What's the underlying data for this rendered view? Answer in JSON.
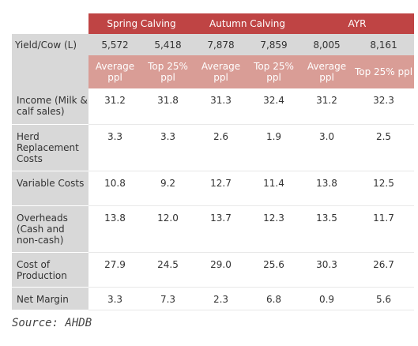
{
  "table": {
    "groups": [
      "Spring Calving",
      "Autumn Calving",
      "AYR"
    ],
    "yield_row": {
      "label": "Yield/Cow (L)",
      "values": [
        "5,572",
        "5,418",
        "7,878",
        "7,859",
        "8,005",
        "8,161"
      ]
    },
    "sub_headers": [
      "Average ppl",
      "Top 25% ppl",
      "Average ppl",
      "Top 25% ppl",
      "Average ppl",
      "Top 25% ppl"
    ],
    "rows": [
      {
        "label": "Income (Milk & calf sales)",
        "values": [
          "31.2",
          "31.8",
          "31.3",
          "32.4",
          "31.2",
          "32.3"
        ]
      },
      {
        "label": "Herd Replacement Costs",
        "values": [
          "3.3",
          "3.3",
          "2.6",
          "1.9",
          "3.0",
          "2.5"
        ]
      },
      {
        "label": "Variable Costs",
        "values": [
          "10.8",
          "9.2",
          "12.7",
          "11.4",
          "13.8",
          "12.5"
        ]
      },
      {
        "label": "Overheads (Cash and non-cash)",
        "values": [
          "13.8",
          "12.0",
          "13.7",
          "12.3",
          "13.5",
          "11.7"
        ]
      },
      {
        "label": "Cost of Production",
        "values": [
          "27.9",
          "24.5",
          "29.0",
          "25.6",
          "30.3",
          "26.7"
        ]
      },
      {
        "label": "Net Margin",
        "values": [
          "3.3",
          "7.3",
          "2.3",
          "6.8",
          "0.9",
          "5.6"
        ]
      }
    ]
  },
  "source": "Source: AHDB"
}
